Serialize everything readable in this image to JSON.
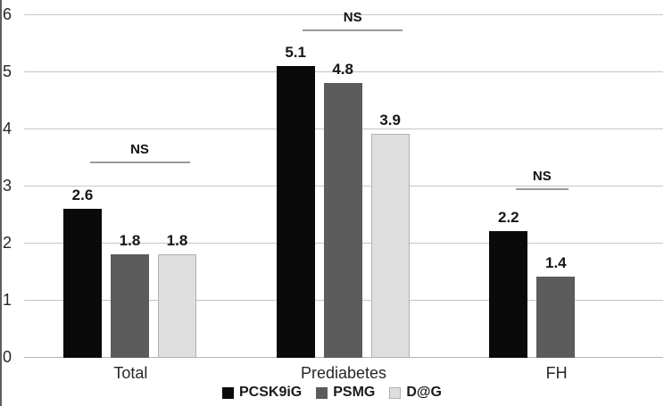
{
  "chart_data": {
    "type": "bar",
    "title": "",
    "xlabel": "",
    "ylabel": "",
    "categories": [
      "Total",
      "Prediabetes",
      "FH"
    ],
    "series": [
      {
        "name": "PCSK9iG",
        "color": "#0a0a0a",
        "values": [
          2.6,
          5.1,
          2.2
        ]
      },
      {
        "name": "PSMG",
        "color": "#5c5c5c",
        "values": [
          1.8,
          4.8,
          1.4
        ]
      },
      {
        "name": "D@G",
        "color": "#dedede",
        "border_color": "#b2b2b2",
        "values": [
          1.8,
          3.9,
          null
        ]
      }
    ],
    "value_labels": [
      [
        "2.6",
        "5.1",
        "2.2"
      ],
      [
        "1.8",
        "4.8",
        "1.4"
      ],
      [
        "1.8",
        "3.9",
        null
      ]
    ],
    "ylim": [
      0,
      6
    ],
    "yticks": [
      0,
      1,
      2,
      3,
      4,
      5,
      6
    ],
    "grid": true,
    "gridline_color": "#c6c6c6",
    "baseline_color": "#b4b4b4",
    "axis_text_color": "#262626",
    "legend_position": "bottom",
    "annotations": [
      {
        "text": "NS",
        "category_index": 0,
        "series_from": 0,
        "series_to": 2,
        "y_value": 3.4
      },
      {
        "text": "NS",
        "category_index": 1,
        "series_from": 0,
        "series_to": 2,
        "y_value": 5.72
      },
      {
        "text": "NS",
        "category_index": 2,
        "series_from": 0,
        "series_to": 1,
        "y_value": 2.93
      }
    ],
    "annotation_line_color": "#9a9a9a"
  }
}
